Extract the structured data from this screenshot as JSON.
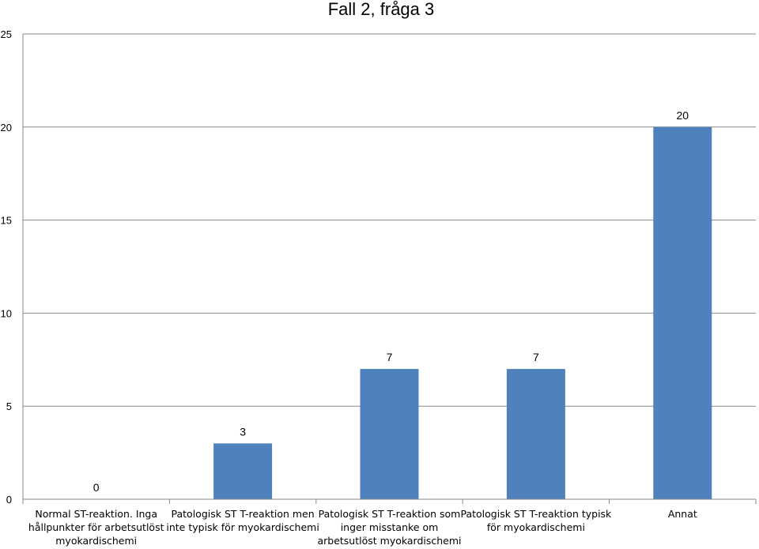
{
  "chart_data": {
    "type": "bar",
    "title": "Fall 2, fråga 3",
    "categories": [
      [
        "Normal ST-reaktion. Inga",
        "hållpunkter för arbetsutlöst",
        "myokardischemi"
      ],
      [
        "Patologisk ST T-reaktion men",
        "inte typisk för myokardischemi"
      ],
      [
        "Patologisk ST T-reaktion som",
        "inger misstanke om",
        "arbetsutlöst myokardischemi"
      ],
      [
        "Patologisk ST T-reaktion typisk",
        "för myokardischemi"
      ],
      [
        "Annat"
      ]
    ],
    "values": [
      0,
      3,
      7,
      7,
      20
    ],
    "data_labels": [
      "0",
      "3",
      "7",
      "7",
      "20"
    ],
    "ylim": [
      0,
      25
    ],
    "yticks": [
      "0",
      "5",
      "10",
      "15",
      "20",
      "25"
    ],
    "grid": true,
    "bar_color": "#4f81bd",
    "grid_color": "#888888"
  }
}
